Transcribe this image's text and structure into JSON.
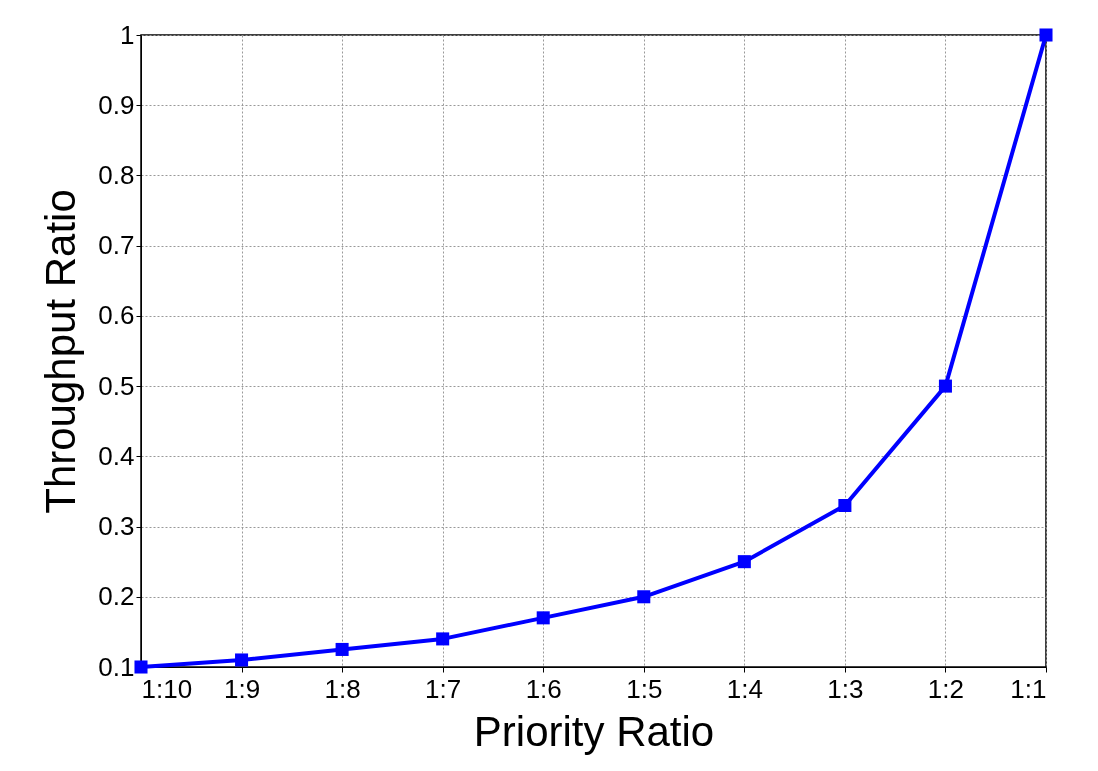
{
  "chart_data": {
    "type": "line",
    "xlabel": "Priority Ratio",
    "ylabel": "Throughput Ratio",
    "categories": [
      "1:10",
      "1:9",
      "1:8",
      "1:7",
      "1:6",
      "1:5",
      "1:4",
      "1:3",
      "1:2",
      "1:1"
    ],
    "series": [
      {
        "color": "#0000ff",
        "values": [
          0.1,
          0.11,
          0.125,
          0.14,
          0.17,
          0.2,
          0.25,
          0.33,
          0.5,
          1.0
        ]
      }
    ],
    "ylim": [
      0.1,
      1
    ],
    "yticks": [
      0.1,
      0.2,
      0.3,
      0.4,
      0.5,
      0.6,
      0.7,
      0.8,
      0.9,
      1
    ],
    "grid": true,
    "marker": "square",
    "line_style": "solid"
  }
}
